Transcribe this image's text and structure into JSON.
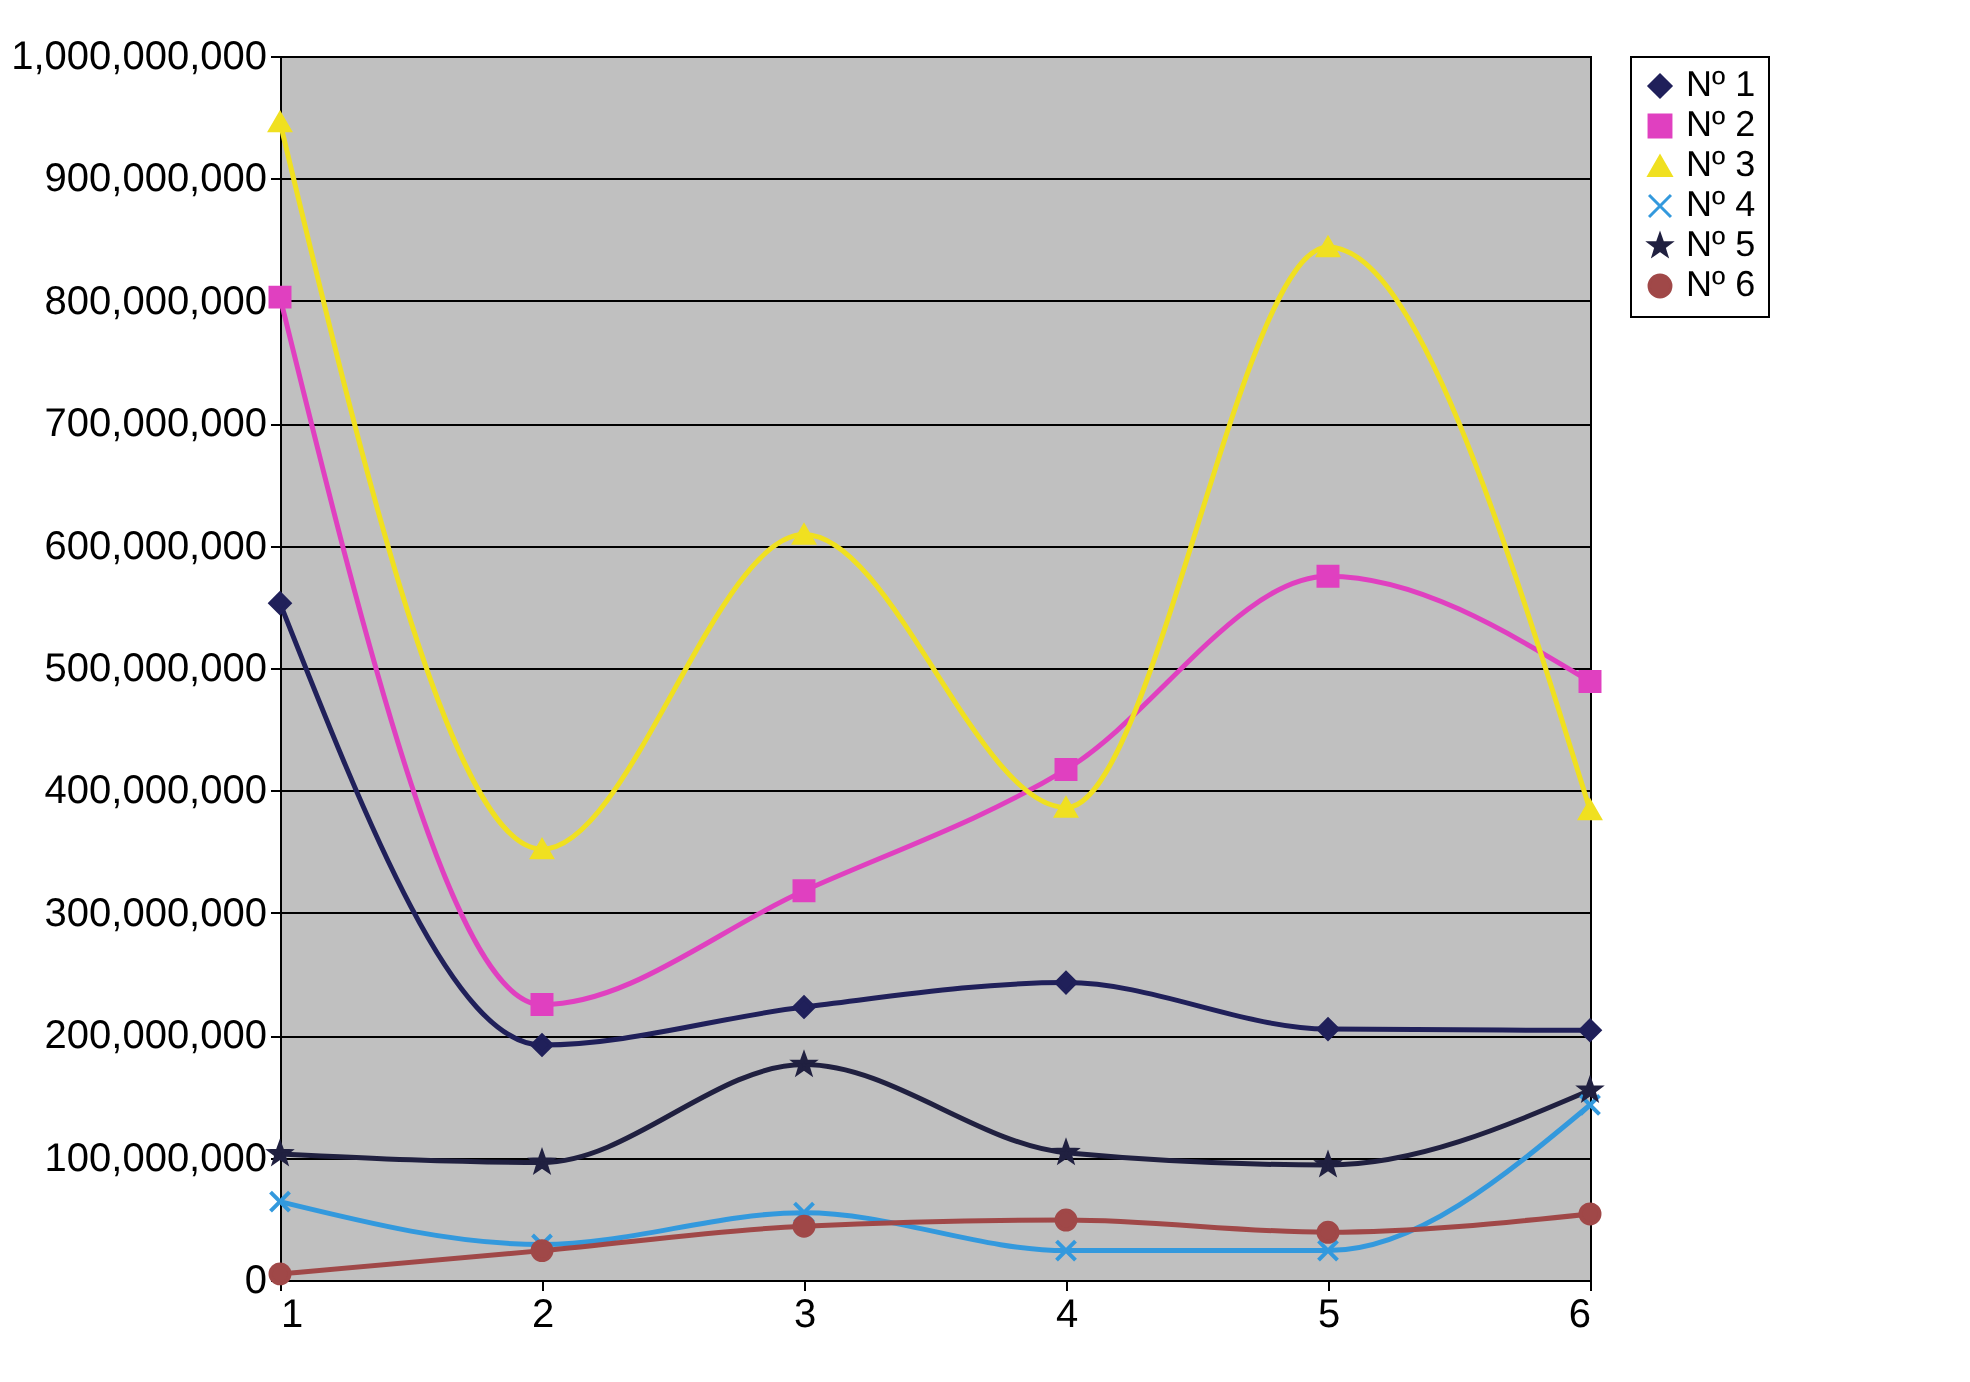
{
  "chart_data": {
    "type": "line",
    "x": [
      1,
      2,
      3,
      4,
      5,
      6
    ],
    "xlim": [
      1,
      6
    ],
    "xticks": [
      1,
      2,
      3,
      4,
      5,
      6
    ],
    "ylim": [
      0,
      1000000000
    ],
    "yticks": [
      0,
      {
        "value": 100000000,
        "label": "100,000,000"
      },
      {
        "value": 200000000,
        "label": "200,000,000"
      },
      {
        "value": 300000000,
        "label": "300,000,000"
      },
      {
        "value": 400000000,
        "label": "400,000,000"
      },
      {
        "value": 500000000,
        "label": "500,000,000"
      },
      {
        "value": 600000000,
        "label": "600,000,000"
      },
      {
        "value": 700000000,
        "label": "700,000,000"
      },
      {
        "value": 800000000,
        "label": "800,000,000"
      },
      {
        "value": 900000000,
        "label": "900,000,000"
      },
      {
        "value": 1000000000,
        "label": "1,000,000,000"
      }
    ],
    "grid": "y",
    "legend": "right",
    "series": [
      {
        "name": "Nº 1",
        "color": "#20205a",
        "marker": "diamond",
        "values": [
          553000000,
          192000000,
          223000000,
          243000000,
          205000000,
          204000000
        ]
      },
      {
        "name": "Nº 2",
        "color": "#e040c0",
        "marker": "square",
        "values": [
          803000000,
          225000000,
          318000000,
          417000000,
          575000000,
          489000000
        ]
      },
      {
        "name": "Nº 3",
        "color": "#f0e020",
        "marker": "triangle",
        "values": [
          946000000,
          352000000,
          609000000,
          386000000,
          844000000,
          384000000
        ]
      },
      {
        "name": "Nº 4",
        "color": "#3399dd",
        "marker": "cross",
        "values": [
          64000000,
          29000000,
          55000000,
          24000000,
          24000000,
          143000000
        ]
      },
      {
        "name": "Nº 5",
        "color": "#202040",
        "marker": "star",
        "values": [
          103000000,
          96000000,
          176000000,
          104000000,
          94000000,
          155000000
        ]
      },
      {
        "name": "Nº 6",
        "color": "#a04848",
        "marker": "circle",
        "values": [
          5000000,
          24000000,
          44000000,
          49000000,
          39000000,
          54000000
        ]
      }
    ]
  }
}
